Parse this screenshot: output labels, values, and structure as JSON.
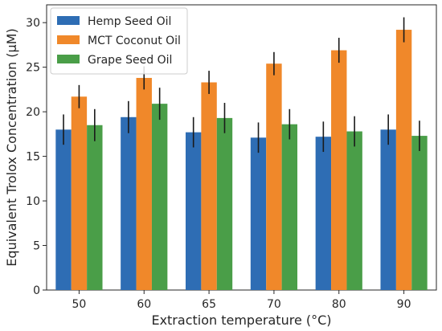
{
  "chart_data": {
    "type": "bar",
    "xlabel": "Extraction temperature (°C)",
    "ylabel": "Equivalent Trolox Concentration (μM)",
    "categories": [
      "50",
      "60",
      "65",
      "70",
      "80",
      "90"
    ],
    "ylim": [
      0,
      32
    ],
    "yticks": [
      0,
      5,
      10,
      15,
      20,
      25,
      30
    ],
    "grid": false,
    "legend_position": "top-left",
    "series": [
      {
        "name": "Hemp Seed Oil",
        "color": "#2e6db4",
        "values": [
          18.0,
          19.4,
          17.7,
          17.1,
          17.2,
          18.0
        ],
        "errors": [
          1.7,
          1.8,
          1.7,
          1.7,
          1.7,
          1.7
        ]
      },
      {
        "name": "MCT Coconut Oil",
        "color": "#f0882a",
        "values": [
          21.7,
          23.8,
          23.3,
          25.4,
          26.9,
          29.2
        ],
        "errors": [
          1.3,
          1.3,
          1.3,
          1.3,
          1.4,
          1.4
        ]
      },
      {
        "name": "Grape Seed Oil",
        "color": "#4a9e48",
        "values": [
          18.5,
          20.9,
          19.3,
          18.6,
          17.8,
          17.3
        ],
        "errors": [
          1.8,
          1.8,
          1.7,
          1.7,
          1.7,
          1.7
        ]
      }
    ]
  }
}
